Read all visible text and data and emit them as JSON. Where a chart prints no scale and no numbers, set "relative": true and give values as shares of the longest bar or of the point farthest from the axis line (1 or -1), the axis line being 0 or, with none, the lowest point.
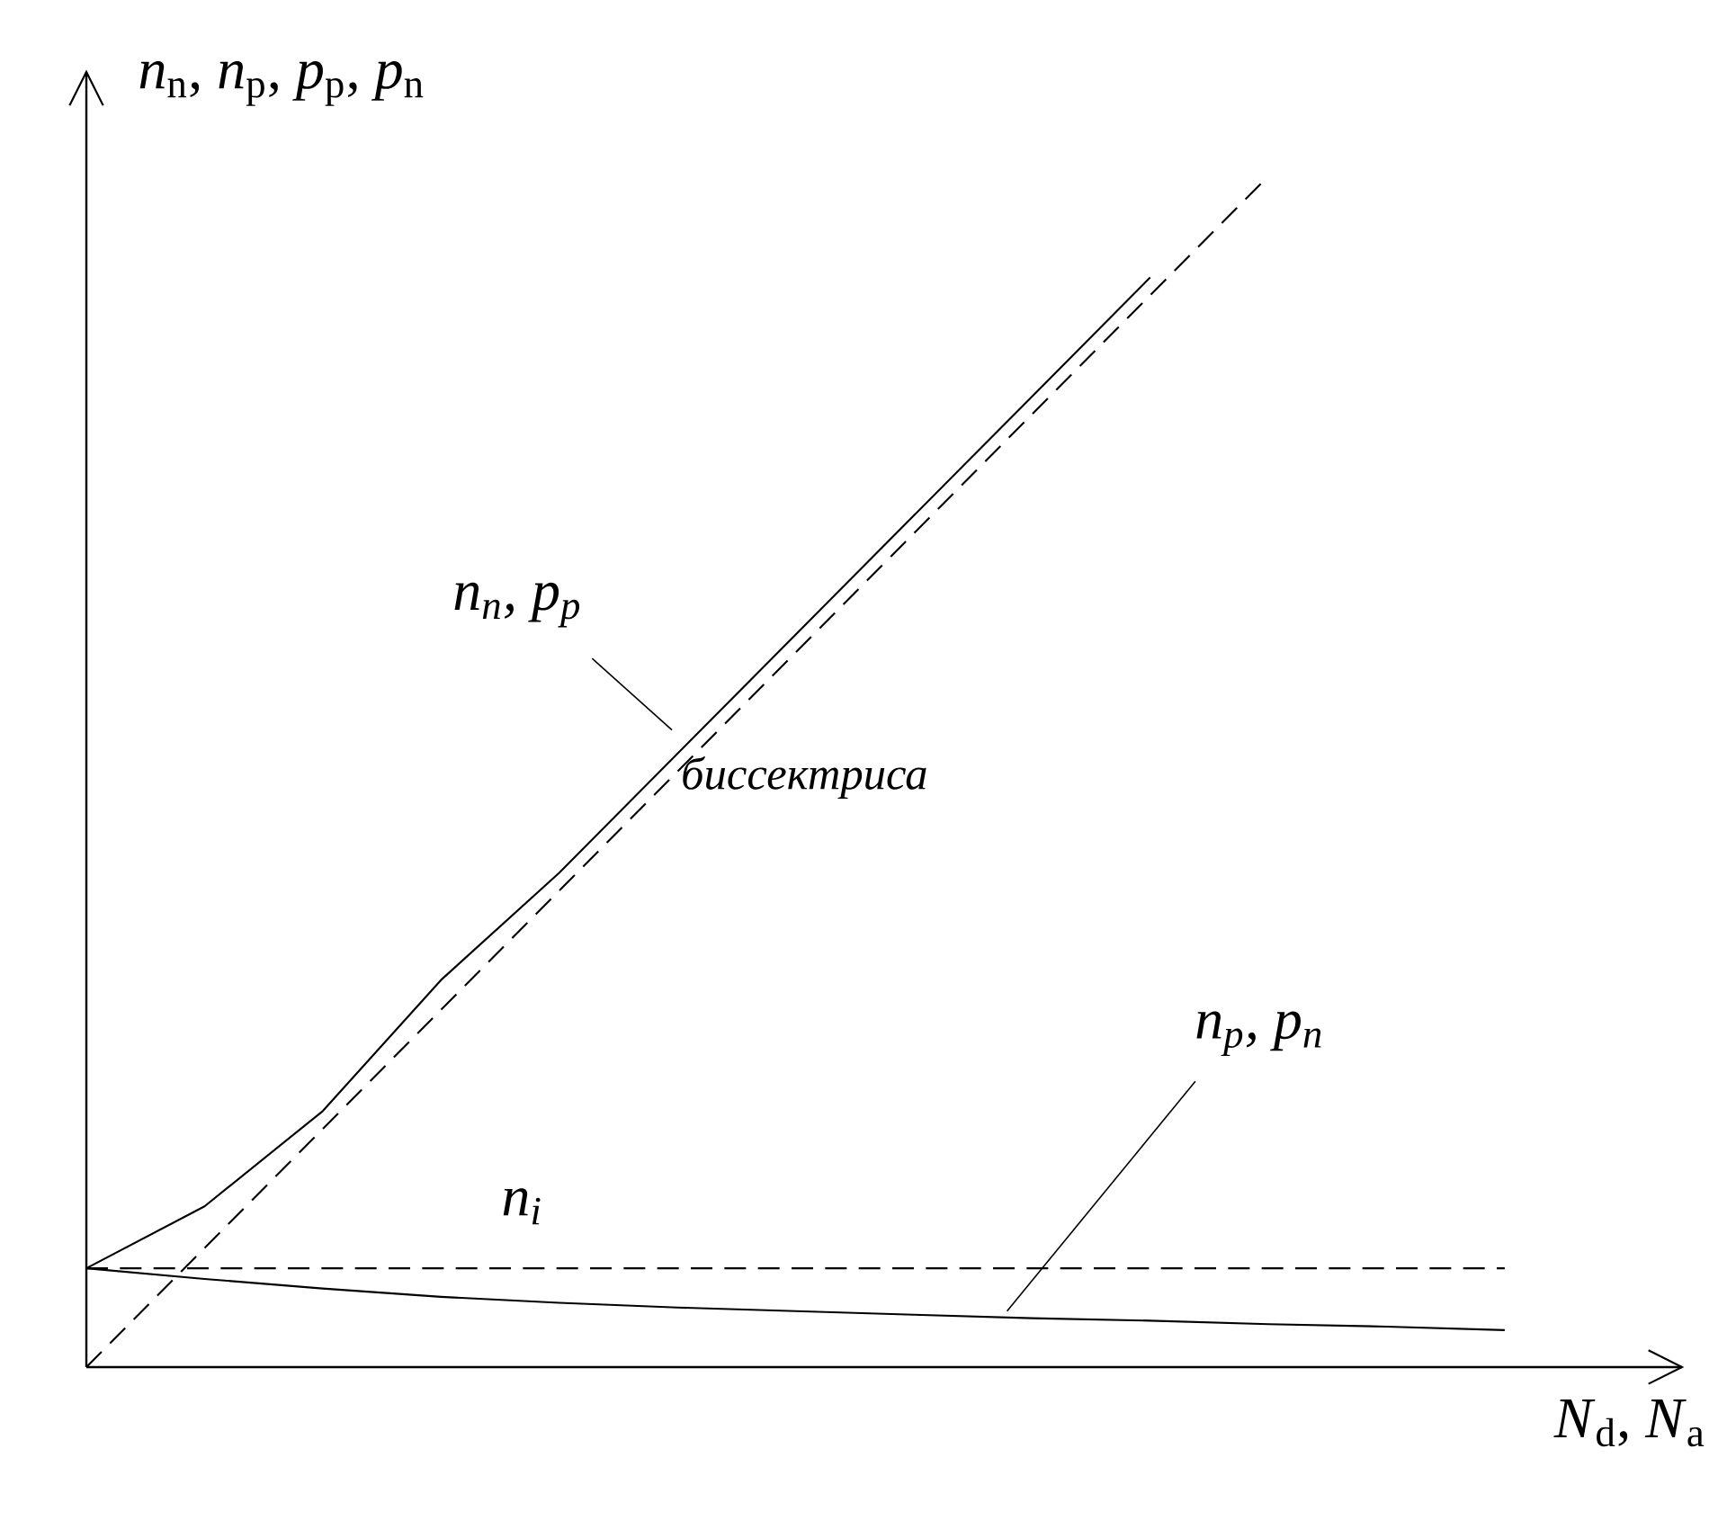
{
  "chart_data": {
    "type": "line",
    "relative": true,
    "xlabel": "*N*$_{d}$, *N*$_{a}$",
    "ylabel": "*n*$_{n}$, *n*$_{p}$,  *p*$_{p}$, *p*$_{n}$",
    "categories": [
      null,
      null,
      null,
      null,
      null,
      null,
      null,
      null,
      null,
      null,
      null,
      null,
      null
    ],
    "series": [
      {
        "name": "*n*$_{n}$, *p*$_{p}$",
        "color": "#000000",
        "line_style": "solid",
        "values": [
          0.083,
          0.135,
          0.215,
          0.325,
          0.415,
          0.515,
          0.615,
          0.715,
          0.815,
          0.915,
          null,
          null,
          null
        ]
      },
      {
        "name": "биссектриса",
        "color": "#000000",
        "line_style": "dashed",
        "values": [
          0,
          0.1,
          0.2,
          0.3,
          0.4,
          0.5,
          0.6,
          0.7,
          0.8,
          0.9,
          1,
          null,
          null
        ]
      },
      {
        "name": "*n*$_{i}$",
        "color": "#000000",
        "line_style": "dashed",
        "values": [
          0.083,
          0.083,
          0.083,
          0.083,
          0.083,
          0.083,
          0.083,
          0.083,
          0.083,
          0.083,
          0.083,
          0.083,
          0.083
        ]
      },
      {
        "name": "*n*$_{p}$, *p*$_{n}$",
        "color": "#000000",
        "line_style": "solid",
        "values": [
          0.083,
          0.074,
          0.066,
          0.059,
          0.054,
          0.05,
          0.047,
          0.044,
          0.041,
          0.039,
          0.036,
          0.034,
          0.031
        ]
      }
    ]
  }
}
